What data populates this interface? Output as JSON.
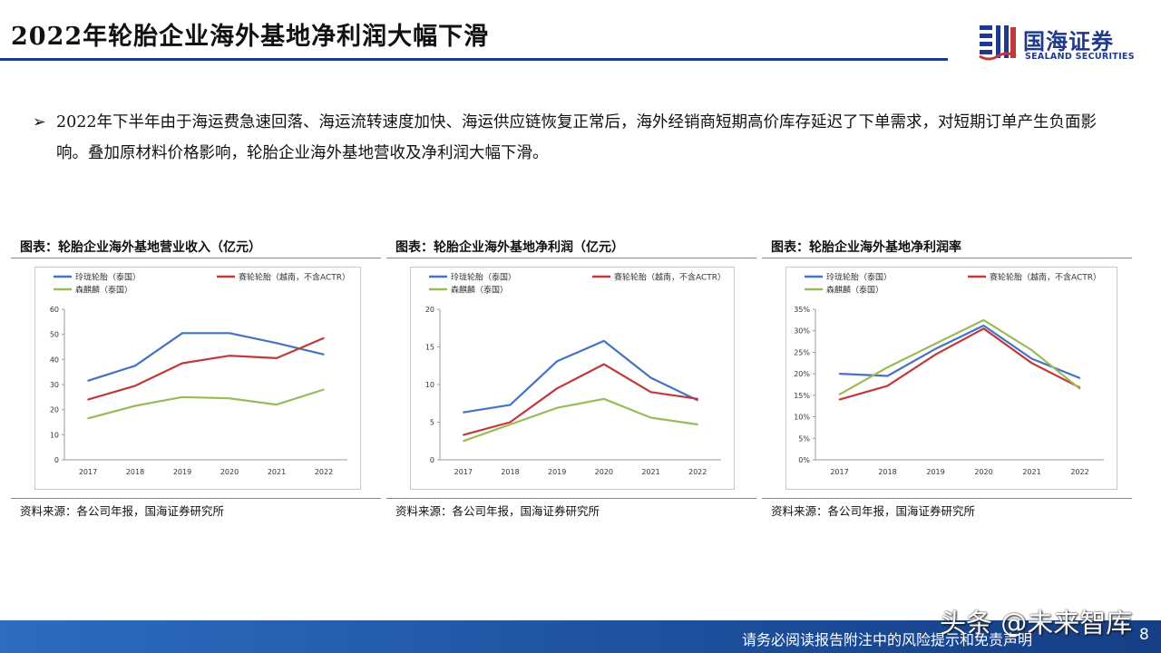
{
  "header": {
    "title": "2022年轮胎企业海外基地净利润大幅下滑",
    "logo_cn": "国海证券",
    "logo_en": "SEALAND SECURITIES"
  },
  "bullet": {
    "mark": "➢",
    "text": "2022年下半年由于海运费急速回落、海运流转速度加快、海运供应链恢复正常后，海外经销商短期高价库存延迟了下单需求，对短期订单产生负面影响。叠加原材料价格影响，轮胎企业海外基地营收及净利润大幅下滑。"
  },
  "panels": [
    {
      "title": "图表：轮胎企业海外基地营业收入（亿元）",
      "source": "资料来源：各公司年报，国海证券研究所"
    },
    {
      "title": "图表：轮胎企业海外基地净利润（亿元）",
      "source": "资料来源：各公司年报，国海证券研究所"
    },
    {
      "title": "图表：轮胎企业海外基地净利润率",
      "source": "资料来源：各公司年报，国海证券研究所"
    }
  ],
  "footer": {
    "disclaimer": "请务必阅读报告附注中的风险提示和免责声明",
    "page": "8",
    "watermark": "头条 @未来智库"
  },
  "colors": {
    "blue": "#4472c4",
    "red": "#c0393b",
    "green": "#9bbb59",
    "brand": "#1f3a8a"
  },
  "chart_data": [
    {
      "type": "line",
      "title": "图表：轮胎企业海外基地营业收入（亿元）",
      "categories": [
        "2017",
        "2018",
        "2019",
        "2020",
        "2021",
        "2022"
      ],
      "ylim": [
        0,
        60
      ],
      "yticks": [
        0,
        10,
        20,
        30,
        40,
        50,
        60
      ],
      "ytick_suffix": "",
      "legend": "top",
      "series": [
        {
          "name": "玲珑轮胎（泰国）",
          "color": "#4472c4",
          "values": [
            31.5,
            37.5,
            50.5,
            50.5,
            46.5,
            42
          ]
        },
        {
          "name": "赛轮轮胎（越南，不含ACTR）",
          "color": "#c0393b",
          "values": [
            24,
            29.5,
            38.5,
            41.5,
            40.5,
            48.5
          ]
        },
        {
          "name": "森麒麟（泰国）",
          "color": "#9bbb59",
          "values": [
            16.5,
            21.5,
            25,
            24.5,
            22,
            28
          ]
        }
      ]
    },
    {
      "type": "line",
      "title": "图表：轮胎企业海外基地净利润（亿元）",
      "categories": [
        "2017",
        "2018",
        "2019",
        "2020",
        "2021",
        "2022"
      ],
      "ylim": [
        0,
        20
      ],
      "yticks": [
        0,
        5,
        10,
        15,
        20
      ],
      "ytick_suffix": "",
      "legend": "top",
      "series": [
        {
          "name": "玲珑轮胎（泰国）",
          "color": "#4472c4",
          "values": [
            6.3,
            7.3,
            13.1,
            15.8,
            10.9,
            7.9
          ]
        },
        {
          "name": "赛轮轮胎（越南，不含ACTR）",
          "color": "#c0393b",
          "values": [
            3.3,
            5.0,
            9.5,
            12.7,
            9.0,
            8.1
          ]
        },
        {
          "name": "森麒麟（泰国）",
          "color": "#9bbb59",
          "values": [
            2.5,
            4.7,
            6.9,
            8.1,
            5.6,
            4.7
          ]
        }
      ]
    },
    {
      "type": "line",
      "title": "图表：轮胎企业海外基地净利润率",
      "categories": [
        "2017",
        "2018",
        "2019",
        "2020",
        "2021",
        "2022"
      ],
      "ylim": [
        0,
        35
      ],
      "yticks": [
        0,
        5,
        10,
        15,
        20,
        25,
        30,
        35
      ],
      "ytick_suffix": "%",
      "legend": "top",
      "series": [
        {
          "name": "玲珑轮胎（泰国）",
          "color": "#4472c4",
          "values": [
            20,
            19.5,
            25.8,
            31.2,
            23.5,
            19
          ]
        },
        {
          "name": "赛轮轮胎（越南，不含ACTR）",
          "color": "#c0393b",
          "values": [
            14,
            17.2,
            24.5,
            30.5,
            22.5,
            16.8
          ]
        },
        {
          "name": "森麒麟（泰国）",
          "color": "#9bbb59",
          "values": [
            15.2,
            21.5,
            27,
            32.5,
            25.5,
            16.5
          ]
        }
      ]
    }
  ]
}
